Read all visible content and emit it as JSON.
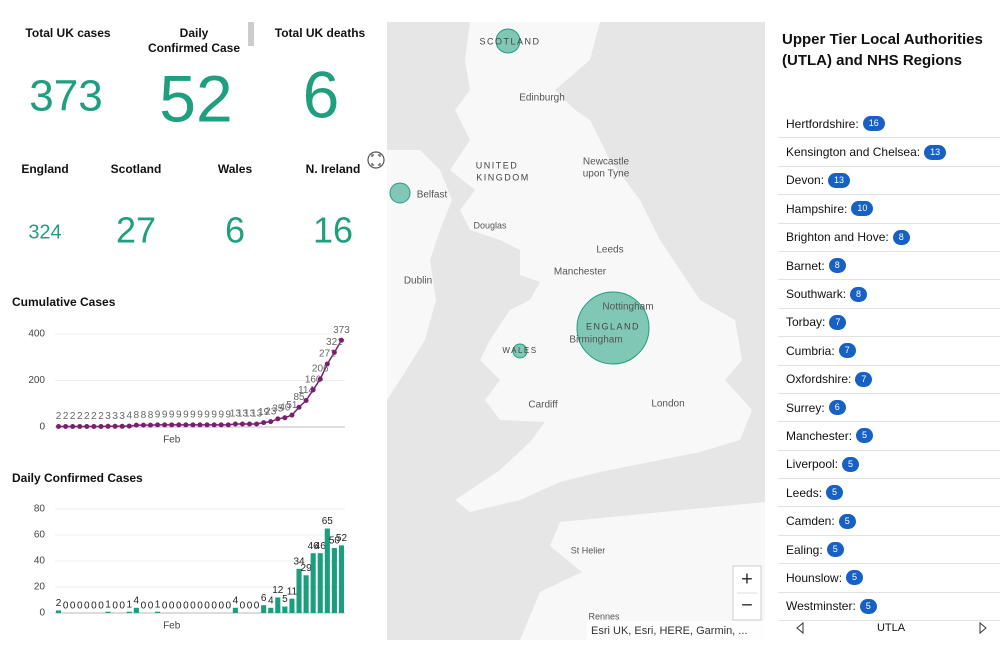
{
  "stats": [
    {
      "label": [
        "Total UK cases"
      ],
      "value": 373
    },
    {
      "label": [
        "Daily",
        "Confirmed Case"
      ],
      "value": 52
    },
    {
      "label": [
        "Total UK deaths"
      ],
      "value": 6
    }
  ],
  "regions": [
    {
      "name": "England",
      "value": 324
    },
    {
      "name": "Scotland",
      "value": 27
    },
    {
      "name": "Wales",
      "value": 6
    },
    {
      "name": "N. Ireland",
      "value": 16
    }
  ],
  "chart_data": [
    {
      "type": "line",
      "title": "Cumulative Cases",
      "categories": [
        null,
        null,
        null,
        null,
        null,
        null,
        null,
        null,
        null,
        null,
        null,
        null,
        null,
        null,
        null,
        null,
        "Feb",
        null,
        null,
        null,
        null,
        null,
        null,
        null,
        null,
        null,
        null,
        null,
        null,
        null,
        null,
        null,
        null,
        null,
        null,
        null,
        null,
        null,
        null,
        null,
        null
      ],
      "values": [
        2,
        2,
        2,
        2,
        2,
        2,
        2,
        3,
        3,
        3,
        4,
        8,
        8,
        8,
        9,
        9,
        9,
        9,
        9,
        9,
        9,
        9,
        9,
        9,
        9,
        13,
        13,
        13,
        13,
        19,
        23,
        35,
        40,
        51,
        85,
        114,
        160,
        206,
        271,
        321,
        373
      ],
      "color": "#7b1e6f",
      "ylim": [
        0,
        400
      ],
      "yticks": [
        0,
        200,
        400
      ],
      "grid": true
    },
    {
      "type": "bar",
      "title": "Daily Confirmed Cases",
      "categories": [
        null,
        null,
        null,
        null,
        null,
        null,
        null,
        null,
        null,
        null,
        null,
        null,
        null,
        null,
        null,
        null,
        "Feb",
        null,
        null,
        null,
        null,
        null,
        null,
        null,
        null,
        null,
        null,
        null,
        null,
        null,
        null,
        null,
        null,
        null,
        null,
        null,
        null,
        null,
        null,
        null,
        null
      ],
      "values": [
        2,
        0,
        0,
        0,
        0,
        0,
        0,
        1,
        0,
        0,
        1,
        4,
        0,
        0,
        1,
        0,
        0,
        0,
        0,
        0,
        0,
        0,
        0,
        0,
        0,
        4,
        0,
        0,
        0,
        6,
        4,
        12,
        5,
        11,
        34,
        29,
        46,
        46,
        65,
        50,
        52
      ],
      "color": "#1b9e7e",
      "ylim": [
        0,
        80
      ],
      "yticks": [
        0,
        20,
        40,
        60,
        80
      ],
      "grid": true
    }
  ],
  "map": {
    "labels": [
      {
        "lines": [
          "SCOTLAND"
        ]
      },
      {
        "lines": [
          "Edinburgh"
        ]
      },
      {
        "lines": [
          "UNITED",
          "KINGDOM"
        ]
      },
      {
        "lines": [
          "Newcastle",
          "upon Tyne"
        ]
      },
      {
        "lines": [
          "Belfast"
        ]
      },
      {
        "lines": [
          "Douglas"
        ]
      },
      {
        "lines": [
          "Leeds"
        ]
      },
      {
        "lines": [
          "Manchester"
        ]
      },
      {
        "lines": [
          "Dublin"
        ]
      },
      {
        "lines": [
          "Nottingham"
        ]
      },
      {
        "lines": [
          "ENGLAND"
        ]
      },
      {
        "lines": [
          "Birmingham"
        ]
      },
      {
        "lines": [
          "WALES"
        ]
      },
      {
        "lines": [
          "Cardiff"
        ]
      },
      {
        "lines": [
          "London"
        ]
      },
      {
        "lines": [
          "St Helier"
        ]
      },
      {
        "lines": [
          "Rennes"
        ]
      }
    ],
    "attribution": "Esri UK, Esri, HERE, Garmin, ...",
    "zoom_in": "+",
    "zoom_out": "−"
  },
  "utla": {
    "title": [
      "Upper Tier Local Authorities",
      "(UTLA) and NHS Regions"
    ],
    "items": [
      {
        "name": "Hertfordshire:",
        "value": 16
      },
      {
        "name": "Kensington and Chelsea:",
        "value": 13
      },
      {
        "name": "Devon:",
        "value": 13
      },
      {
        "name": "Hampshire:",
        "value": 10
      },
      {
        "name": "Brighton and Hove:",
        "value": 8
      },
      {
        "name": "Barnet:",
        "value": 8
      },
      {
        "name": "Southwark:",
        "value": 8
      },
      {
        "name": "Torbay:",
        "value": 7
      },
      {
        "name": "Cumbria:",
        "value": 7
      },
      {
        "name": "Oxfordshire:",
        "value": 7
      },
      {
        "name": "Surrey:",
        "value": 6
      },
      {
        "name": "Manchester:",
        "value": 5
      },
      {
        "name": "Liverpool:",
        "value": 5
      },
      {
        "name": "Leeds:",
        "value": 5
      },
      {
        "name": "Camden:",
        "value": 5
      },
      {
        "name": "Ealing:",
        "value": 5
      },
      {
        "name": "Hounslow:",
        "value": 5
      },
      {
        "name": "Westminster:",
        "value": 5
      }
    ],
    "footer": "UTLA"
  }
}
